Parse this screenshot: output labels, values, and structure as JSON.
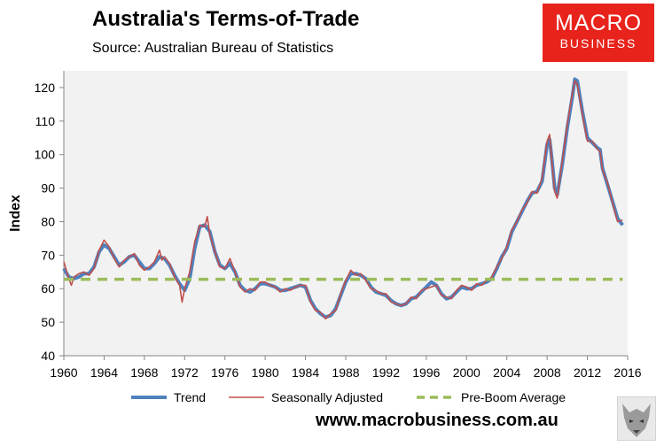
{
  "header": {
    "title": "Australia's Terms-of-Trade",
    "subtitle": "Source: Australian Bureau of Statistics"
  },
  "logo": {
    "line1": "MACRO",
    "line2": "BUSINESS"
  },
  "footer": {
    "url": "www.macrobusiness.com.au"
  },
  "colors": {
    "trend": "#4f81bd",
    "seasonally_adjusted": "#c0504d",
    "pre_boom_average": "#9bbb59",
    "plot_background": "#f2f2f2",
    "logo": "#e8231c"
  },
  "chart_data": {
    "type": "line",
    "title": "Australia's Terms-of-Trade",
    "subtitle": "Source: Australian Bureau of Statistics",
    "xlabel": "",
    "ylabel": "Index",
    "xlim": [
      1960,
      2016
    ],
    "ylim": [
      40,
      125
    ],
    "x_ticks": [
      "1960",
      "1964",
      "1968",
      "1972",
      "1976",
      "1980",
      "1984",
      "1988",
      "1992",
      "1996",
      "2000",
      "2004",
      "2008",
      "2012",
      "2016"
    ],
    "y_ticks": [
      "40",
      "50",
      "60",
      "70",
      "80",
      "90",
      "100",
      "110",
      "120"
    ],
    "grid": false,
    "legend_placement": "bottom",
    "series": [
      {
        "name": "Trend",
        "points": [
          [
            1960,
            66
          ],
          [
            1960.5,
            63.5
          ],
          [
            1961,
            63
          ],
          [
            1961.5,
            63.5
          ],
          [
            1962,
            64.5
          ],
          [
            1962.5,
            64.5
          ],
          [
            1963,
            66.5
          ],
          [
            1963.5,
            71
          ],
          [
            1964,
            73
          ],
          [
            1964.5,
            72
          ],
          [
            1965,
            69.5
          ],
          [
            1965.5,
            67
          ],
          [
            1966,
            68
          ],
          [
            1966.5,
            69.5
          ],
          [
            1967,
            70
          ],
          [
            1967.5,
            68
          ],
          [
            1968,
            66
          ],
          [
            1968.5,
            66
          ],
          [
            1969,
            67.5
          ],
          [
            1969.5,
            69.5
          ],
          [
            1970,
            69
          ],
          [
            1970.5,
            67
          ],
          [
            1971,
            64
          ],
          [
            1971.5,
            61.5
          ],
          [
            1972,
            59.5
          ],
          [
            1972.5,
            63
          ],
          [
            1973,
            72
          ],
          [
            1973.5,
            78.5
          ],
          [
            1974,
            79
          ],
          [
            1974.5,
            77
          ],
          [
            1975,
            71
          ],
          [
            1975.5,
            67
          ],
          [
            1976,
            66
          ],
          [
            1976.5,
            67.5
          ],
          [
            1977,
            65
          ],
          [
            1977.5,
            61
          ],
          [
            1978,
            59.5
          ],
          [
            1978.5,
            59
          ],
          [
            1979,
            60
          ],
          [
            1979.5,
            61.5
          ],
          [
            1980,
            61.5
          ],
          [
            1980.5,
            61
          ],
          [
            1981,
            60.5
          ],
          [
            1981.5,
            59.5
          ],
          [
            1982,
            59.5
          ],
          [
            1982.5,
            60
          ],
          [
            1983,
            60.5
          ],
          [
            1983.5,
            61
          ],
          [
            1984,
            60.5
          ],
          [
            1984.5,
            56.5
          ],
          [
            1985,
            54
          ],
          [
            1985.5,
            52.5
          ],
          [
            1986,
            51.5
          ],
          [
            1986.5,
            52
          ],
          [
            1987,
            54
          ],
          [
            1987.5,
            58
          ],
          [
            1988,
            62
          ],
          [
            1988.5,
            64.5
          ],
          [
            1989,
            64.5
          ],
          [
            1989.5,
            64
          ],
          [
            1990,
            63
          ],
          [
            1990.5,
            60.5
          ],
          [
            1991,
            59
          ],
          [
            1991.5,
            58.5
          ],
          [
            1992,
            58
          ],
          [
            1992.5,
            56.5
          ],
          [
            1993,
            55.5
          ],
          [
            1993.5,
            55
          ],
          [
            1994,
            55.5
          ],
          [
            1994.5,
            57
          ],
          [
            1995,
            57.5
          ],
          [
            1995.5,
            59
          ],
          [
            1996,
            60.5
          ],
          [
            1996.5,
            62
          ],
          [
            1997,
            61
          ],
          [
            1997.5,
            58.5
          ],
          [
            1998,
            57
          ],
          [
            1998.5,
            57.5
          ],
          [
            1999,
            59
          ],
          [
            1999.5,
            60.5
          ],
          [
            2000,
            60
          ],
          [
            2000.5,
            60
          ],
          [
            2001,
            61
          ],
          [
            2001.5,
            61.5
          ],
          [
            2002,
            62
          ],
          [
            2002.5,
            63
          ],
          [
            2003,
            66
          ],
          [
            2003.5,
            69.5
          ],
          [
            2004,
            72
          ],
          [
            2004.5,
            77
          ],
          [
            2005,
            80
          ],
          [
            2005.5,
            83
          ],
          [
            2006,
            86
          ],
          [
            2006.5,
            88.5
          ],
          [
            2007,
            89
          ],
          [
            2007.5,
            92
          ],
          [
            2008,
            103
          ],
          [
            2008.25,
            104.5
          ],
          [
            2008.5,
            98
          ],
          [
            2008.75,
            90
          ],
          [
            2009,
            88
          ],
          [
            2009.5,
            97
          ],
          [
            2010,
            108
          ],
          [
            2010.5,
            117
          ],
          [
            2010.75,
            122.5
          ],
          [
            2011,
            122
          ],
          [
            2011.5,
            113
          ],
          [
            2012,
            105
          ],
          [
            2012.5,
            103.5
          ],
          [
            2013,
            102
          ],
          [
            2013.25,
            101.5
          ],
          [
            2013.5,
            96
          ],
          [
            2014,
            91
          ],
          [
            2014.5,
            86
          ],
          [
            2015,
            81
          ],
          [
            2015.5,
            79
          ]
        ]
      },
      {
        "name": "Seasonally Adjusted",
        "points": [
          [
            1960,
            68
          ],
          [
            1960.5,
            63
          ],
          [
            1960.75,
            61
          ],
          [
            1961,
            63.5
          ],
          [
            1961.5,
            64.5
          ],
          [
            1962,
            65
          ],
          [
            1962.5,
            64
          ],
          [
            1963,
            66
          ],
          [
            1963.5,
            71.5
          ],
          [
            1964,
            74.5
          ],
          [
            1964.5,
            72.5
          ],
          [
            1965,
            69
          ],
          [
            1965.5,
            66.5
          ],
          [
            1966,
            68.5
          ],
          [
            1966.5,
            69.5
          ],
          [
            1967,
            70.5
          ],
          [
            1967.5,
            67
          ],
          [
            1968,
            65.5
          ],
          [
            1968.5,
            66.5
          ],
          [
            1969,
            68
          ],
          [
            1969.5,
            71.5
          ],
          [
            1969.75,
            68.5
          ],
          [
            1970,
            69.5
          ],
          [
            1970.5,
            67.5
          ],
          [
            1971,
            63.5
          ],
          [
            1971.5,
            61
          ],
          [
            1971.75,
            56
          ],
          [
            1972,
            60
          ],
          [
            1972.5,
            65
          ],
          [
            1973,
            74
          ],
          [
            1973.5,
            79
          ],
          [
            1974,
            78.5
          ],
          [
            1974.25,
            81.5
          ],
          [
            1974.5,
            76
          ],
          [
            1975,
            71
          ],
          [
            1975.5,
            66.5
          ],
          [
            1976,
            66
          ],
          [
            1976.5,
            69
          ],
          [
            1977,
            65
          ],
          [
            1977.5,
            60.5
          ],
          [
            1978,
            59
          ],
          [
            1978.5,
            60
          ],
          [
            1979,
            59.5
          ],
          [
            1979.5,
            62
          ],
          [
            1980,
            62
          ],
          [
            1980.5,
            61
          ],
          [
            1981,
            60.5
          ],
          [
            1981.5,
            59
          ],
          [
            1982,
            60
          ],
          [
            1982.5,
            59.5
          ],
          [
            1983,
            60.5
          ],
          [
            1983.5,
            61
          ],
          [
            1984,
            61
          ],
          [
            1984.5,
            56
          ],
          [
            1985,
            53.5
          ],
          [
            1985.5,
            53
          ],
          [
            1986,
            51
          ],
          [
            1986.5,
            52.5
          ],
          [
            1987,
            53.5
          ],
          [
            1987.5,
            58.5
          ],
          [
            1988,
            62.5
          ],
          [
            1988.5,
            65.5
          ],
          [
            1989,
            64
          ],
          [
            1989.5,
            64.5
          ],
          [
            1990,
            62.5
          ],
          [
            1990.5,
            60
          ],
          [
            1991,
            59.5
          ],
          [
            1991.5,
            58.5
          ],
          [
            1992,
            58.5
          ],
          [
            1992.5,
            56
          ],
          [
            1993,
            55.5
          ],
          [
            1993.5,
            55
          ],
          [
            1994,
            55.5
          ],
          [
            1994.5,
            57.5
          ],
          [
            1995,
            57
          ],
          [
            1995.5,
            59.5
          ],
          [
            1996,
            60
          ],
          [
            1996.5,
            60.5
          ],
          [
            1997,
            61
          ],
          [
            1997.5,
            58
          ],
          [
            1998,
            57.5
          ],
          [
            1998.5,
            57
          ],
          [
            1999,
            59.5
          ],
          [
            1999.5,
            61
          ],
          [
            2000,
            60.5
          ],
          [
            2000.5,
            59.5
          ],
          [
            2001,
            61.5
          ],
          [
            2001.5,
            61
          ],
          [
            2002,
            62.5
          ],
          [
            2002.5,
            63.5
          ],
          [
            2003,
            66.5
          ],
          [
            2003.5,
            69
          ],
          [
            2004,
            72.5
          ],
          [
            2004.5,
            77.5
          ],
          [
            2005,
            80
          ],
          [
            2005.5,
            83.5
          ],
          [
            2006,
            85.5
          ],
          [
            2006.5,
            89
          ],
          [
            2007,
            88.5
          ],
          [
            2007.5,
            93
          ],
          [
            2008,
            104
          ],
          [
            2008.25,
            106
          ],
          [
            2008.5,
            97
          ],
          [
            2008.75,
            89
          ],
          [
            2009,
            87
          ],
          [
            2009.5,
            98
          ],
          [
            2010,
            109
          ],
          [
            2010.5,
            118
          ],
          [
            2010.75,
            122
          ],
          [
            2011,
            121
          ],
          [
            2011.5,
            112
          ],
          [
            2012,
            104
          ],
          [
            2012.5,
            104
          ],
          [
            2013,
            101.5
          ],
          [
            2013.25,
            101
          ],
          [
            2013.5,
            95.5
          ],
          [
            2014,
            91.5
          ],
          [
            2014.5,
            85.5
          ],
          [
            2015,
            80
          ],
          [
            2015.5,
            80.5
          ]
        ]
      },
      {
        "name": "Pre-Boom Average",
        "points": [
          [
            1960,
            62.8
          ],
          [
            2015.5,
            62.8
          ]
        ]
      }
    ]
  }
}
